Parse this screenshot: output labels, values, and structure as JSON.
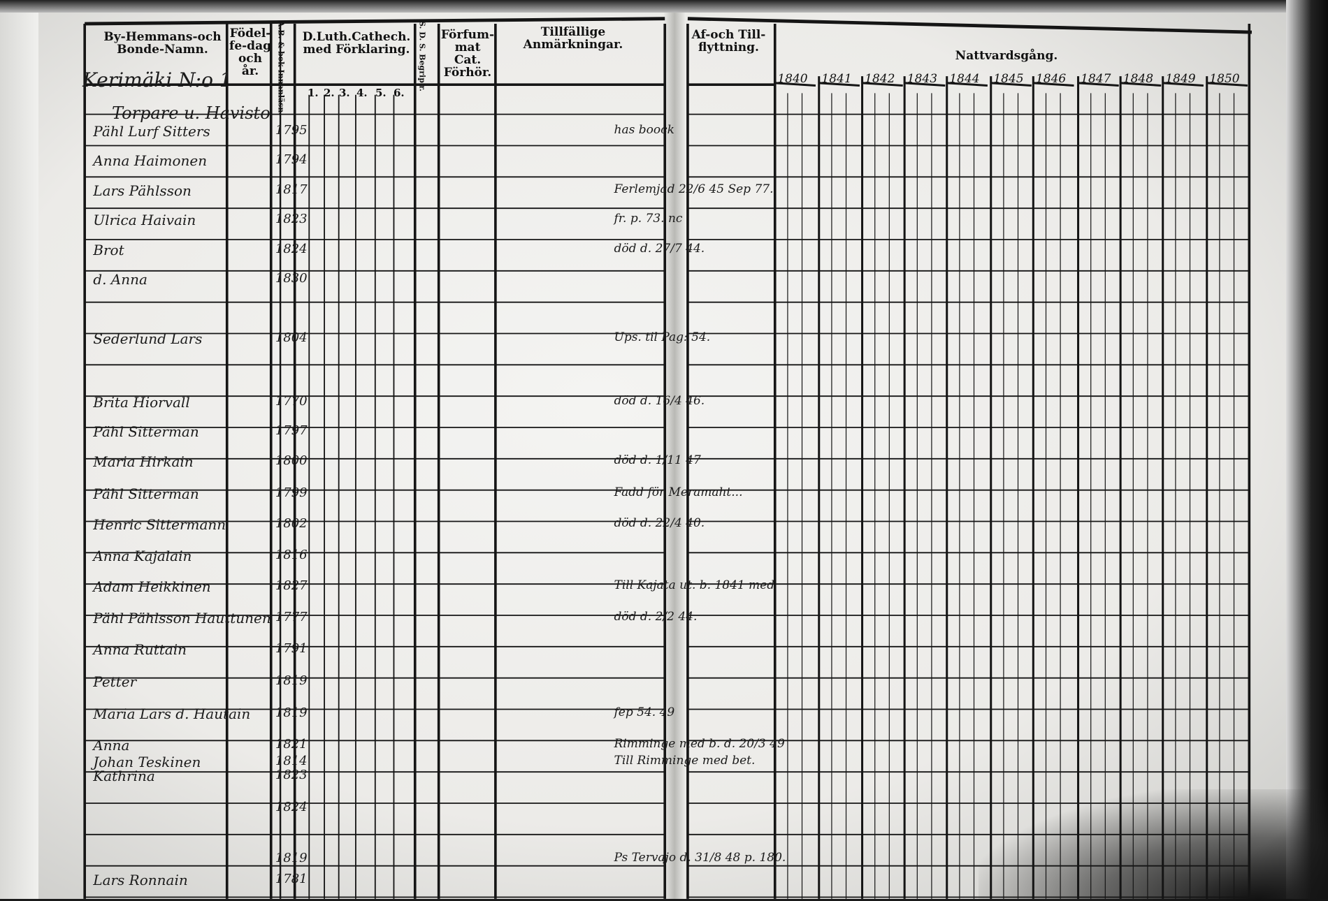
{
  "left_page": {
    "headers": {
      "name": "By-Hemmans-och Bonde-Namn.",
      "birth": "Födel-fe-dag och år.",
      "ab_bok": "A.B. & bok Innanläsn.",
      "catechism": "D.Luth.Cathech. med Förklaring.",
      "catechism_parts": [
        "1.",
        "2.",
        "3.",
        "4.",
        "5.",
        "6."
      ],
      "sds": "S. D. S. Begrip'r.",
      "forhor": "Förfum-mat Cat. Förhör.",
      "remarks": "Tillfällige Anmärkningar."
    },
    "handwritten": {
      "village": "Kerimäki N:o 1",
      "farm": "Torpare u. Havisto",
      "entries": [
        {
          "name": "Pähl Lurf Sitters",
          "year": "1795",
          "remark": "has boock"
        },
        {
          "name": "Anna Haimonen",
          "year": "1794",
          "remark": ""
        },
        {
          "name": "Lars Pählsson",
          "year": "1817",
          "remark": "Ferlemjad 22/6 45 Sep 77."
        },
        {
          "name": "Ulrica Haivain",
          "year": "1823",
          "remark": "fr. p. 73. nc"
        },
        {
          "name": "Brot",
          "year": "1824",
          "remark": "död d. 27/7 44."
        },
        {
          "name": "d. Anna",
          "year": "1830",
          "remark": ""
        },
        {
          "name": "Sederlund Lars",
          "year": "1804",
          "remark": "Ups. til Pag: 54."
        },
        {
          "name": "Brita Hiorvall",
          "year": "1770",
          "remark": "död d. 16/4 46."
        },
        {
          "name": "Pähl Sitterman",
          "year": "1797",
          "remark": ""
        },
        {
          "name": "Maria Hirkain",
          "year": "1800",
          "remark": "död d. 1/11 47"
        },
        {
          "name": "Pähl Sitterman",
          "year": "1799",
          "remark": "Fadd för Meramaht..."
        },
        {
          "name": "Henric Sittermann",
          "year": "1802",
          "remark": "död d. 22/4 40."
        },
        {
          "name": "Anna Kajalain",
          "year": "1816",
          "remark": ""
        },
        {
          "name": "Adam Heikkinen",
          "year": "1827",
          "remark": "Till Kajata ut. b. 1841 med"
        },
        {
          "name": "Pähl Pählsson Hauttunen",
          "year": "1777",
          "remark": "död d. 2/2 44."
        },
        {
          "name": "Anna Ruttain",
          "year": "1791",
          "remark": ""
        },
        {
          "name": "Petter",
          "year": "1819",
          "remark": ""
        },
        {
          "name": "Maria Lars d. Hautain",
          "year": "1819",
          "remark": "fep 54. 49"
        },
        {
          "name": "Anna",
          "year": "1821",
          "remark": "Rimminge med b. d. 20/3 49"
        },
        {
          "name": "Johan Teskinen",
          "year": "1814",
          "remark": "Till Rimminge med bet."
        },
        {
          "name": "Kathrina",
          "year": "1823",
          "remark": ""
        },
        {
          "name": "",
          "year": "1824",
          "remark": ""
        },
        {
          "name": "",
          "year": "1819",
          "remark": "Ps Tervajo d. 31/8 48 p. 180."
        },
        {
          "name": "Lars Ronnain",
          "year": "1781",
          "remark": ""
        }
      ]
    }
  },
  "right_page": {
    "headers": {
      "moves": "Af-och Till-flyttning.",
      "communion": "Nattvardsgång."
    },
    "years": [
      "1840",
      "1841",
      "1842",
      "1843",
      "1844",
      "1845",
      "1846",
      "1847",
      "1848",
      "1849",
      "1850"
    ]
  }
}
